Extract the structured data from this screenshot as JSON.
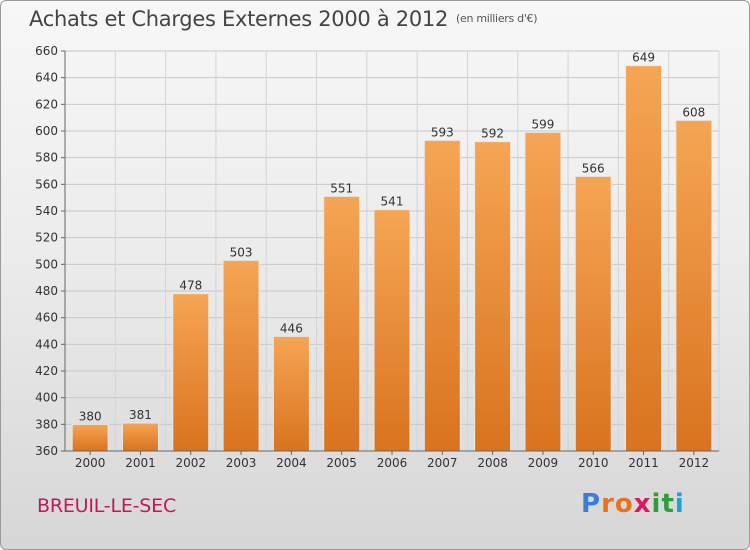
{
  "header": {
    "title": "Achats et Charges Externes 2000 à 2012",
    "unit": "(en milliers d'€)"
  },
  "footer": {
    "commune": "BREUIL-LE-SEC",
    "brand_letters": [
      "P",
      "r",
      "o",
      "x",
      "i",
      "t",
      "i"
    ],
    "brand_colors": [
      "#3a7fd5",
      "#e8731a",
      "#e8731a",
      "#d81b60",
      "#2e9e3a",
      "#2e9e3a",
      "#1aa3d8"
    ]
  },
  "chart_data": {
    "type": "bar",
    "categories": [
      "2000",
      "2001",
      "2002",
      "2003",
      "2004",
      "2005",
      "2006",
      "2007",
      "2008",
      "2009",
      "2010",
      "2011",
      "2012"
    ],
    "values": [
      380,
      381,
      478,
      503,
      446,
      551,
      541,
      593,
      592,
      599,
      566,
      649,
      608
    ],
    "ylim": [
      360,
      660
    ],
    "yticks": [
      360,
      380,
      400,
      420,
      440,
      460,
      480,
      500,
      520,
      540,
      560,
      580,
      600,
      620,
      640,
      660
    ],
    "grid": true,
    "bar_color": "#f0963c",
    "title": "Achats et Charges Externes 2000 à 2012",
    "xlabel": "",
    "ylabel": ""
  }
}
